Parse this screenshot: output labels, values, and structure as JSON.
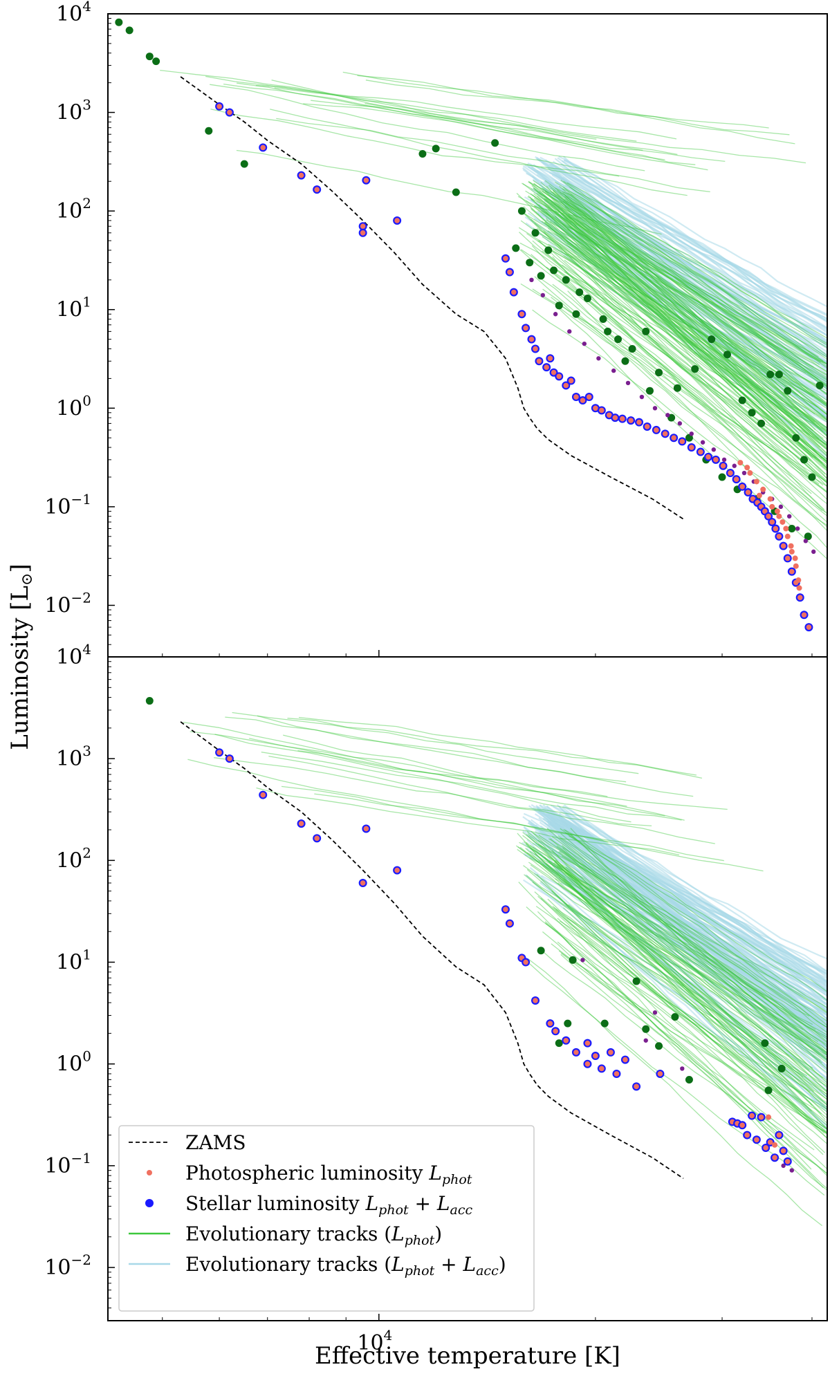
{
  "chart_data": [
    {
      "type": "scatter",
      "panel": "top",
      "xscale": "log",
      "yscale": "log",
      "xlim": [
        4200,
        42000
      ],
      "ylim": [
        0.003,
        10000
      ],
      "x_ticks": [
        {
          "value": 10000,
          "label": "10",
          "exp": "4"
        }
      ],
      "y_ticks": [
        {
          "value": 10000,
          "label": "10",
          "exp": "4"
        },
        {
          "value": 1000,
          "label": "10",
          "exp": "3"
        },
        {
          "value": 100,
          "label": "10",
          "exp": "2"
        },
        {
          "value": 10,
          "label": "10",
          "exp": "1"
        },
        {
          "value": 1,
          "label": "10",
          "exp": "0"
        },
        {
          "value": 0.1,
          "label": "10",
          "exp": "−1"
        },
        {
          "value": 0.01,
          "label": "10",
          "exp": "−2"
        }
      ],
      "zams": {
        "x": [
          5300,
          6000,
          6500,
          7000,
          7800,
          8600,
          9500,
          10500,
          11500,
          12800,
          14000,
          15000,
          15600,
          15900,
          16200,
          16600,
          17200,
          18500,
          21000,
          24000,
          26500
        ],
        "y": [
          2300,
          1200,
          800,
          520,
          300,
          160,
          80,
          38,
          18,
          9,
          6,
          3.2,
          1.6,
          1.0,
          0.8,
          0.62,
          0.48,
          0.33,
          0.2,
          0.12,
          0.075
        ]
      },
      "stellar_points": {
        "x": [
          6000,
          6200,
          6900,
          7800,
          8200,
          9600,
          9500,
          9500,
          10600,
          15000,
          15200,
          15400,
          15800,
          16000,
          16300,
          16500,
          16700,
          17100,
          17300,
          17500,
          17800,
          18200,
          18500,
          18800,
          19200,
          19600,
          20000,
          20400,
          20900,
          21300,
          21800,
          22400,
          23000,
          23600,
          24300,
          25000,
          25700,
          26400,
          27200,
          28000,
          28700,
          29400,
          30100,
          30800,
          31400,
          32000,
          32600,
          33100,
          33600,
          34000,
          34400,
          34800,
          35200,
          35600,
          36000,
          36500,
          37000,
          37500,
          38000,
          38500,
          39000,
          39600
        ],
        "y": [
          1150,
          1000,
          440,
          230,
          165,
          205,
          70,
          60,
          80,
          33,
          24,
          15,
          9,
          6.5,
          5,
          4,
          3,
          2.6,
          3.2,
          2.3,
          2.1,
          1.7,
          1.9,
          1.3,
          1.2,
          1.3,
          1.0,
          0.95,
          0.85,
          0.8,
          0.78,
          0.75,
          0.72,
          0.65,
          0.6,
          0.55,
          0.5,
          0.46,
          0.4,
          0.36,
          0.32,
          0.3,
          0.26,
          0.22,
          0.19,
          0.16,
          0.14,
          0.12,
          0.11,
          0.1,
          0.09,
          0.08,
          0.07,
          0.06,
          0.05,
          0.04,
          0.03,
          0.022,
          0.017,
          0.012,
          0.008,
          0.006
        ]
      },
      "phot_points": {
        "x": [
          31800,
          32800,
          33500,
          34200,
          35000,
          35800,
          36400,
          37000,
          37500,
          38000,
          38400,
          32500,
          33800,
          35200,
          36000,
          36800,
          37400,
          37900,
          38300
        ],
        "y": [
          0.28,
          0.22,
          0.18,
          0.15,
          0.12,
          0.09,
          0.07,
          0.05,
          0.035,
          0.025,
          0.015,
          0.25,
          0.13,
          0.1,
          0.08,
          0.06,
          0.04,
          0.03,
          0.018
        ]
      },
      "green_points": {
        "x": [
          4350,
          4500,
          4800,
          4900,
          5800,
          6500,
          11500,
          12000,
          12800,
          14500,
          15500,
          15800,
          16200,
          16800,
          17200,
          17800,
          18200,
          18800,
          19500,
          20500,
          21500,
          22500,
          23500,
          24500,
          26000,
          27500,
          29000,
          30500,
          32000,
          33000,
          34000,
          35000,
          36000,
          37000,
          38000,
          39000,
          40000,
          41000,
          16500,
          17500,
          19000,
          20800,
          22000,
          23800,
          25500,
          27000,
          28500,
          30000,
          31500,
          33500,
          35500,
          37500,
          39500
        ],
        "y": [
          8200,
          6800,
          3700,
          3300,
          650,
          300,
          380,
          430,
          155,
          490,
          42,
          100,
          30,
          22,
          40,
          11,
          20,
          9,
          13,
          8,
          5,
          4,
          6,
          2.3,
          1.6,
          2.5,
          5,
          3.5,
          1.2,
          0.9,
          0.7,
          2.2,
          2.2,
          1.5,
          0.5,
          0.3,
          0.2,
          1.7,
          60,
          25,
          15,
          6,
          3,
          1.5,
          0.8,
          0.5,
          0.3,
          0.2,
          0.15,
          0.12,
          0.09,
          0.06,
          0.05
        ]
      },
      "purple_points": {
        "x": [
          16300,
          16900,
          17600,
          18400,
          19300,
          20200,
          21200,
          22200,
          23200,
          24200,
          25200,
          26200,
          27200,
          28200,
          29200,
          30200,
          31200,
          32200,
          33200,
          34200,
          35200,
          36200,
          37200,
          38200,
          39200,
          40200
        ],
        "y": [
          20,
          14,
          9,
          6,
          4.5,
          3.2,
          2.4,
          1.8,
          1.3,
          1.0,
          0.85,
          0.7,
          0.55,
          0.45,
          0.38,
          0.3,
          0.26,
          0.22,
          0.18,
          0.14,
          0.12,
          0.1,
          0.08,
          0.06,
          0.045,
          0.035
        ]
      }
    },
    {
      "type": "scatter",
      "panel": "bottom",
      "xscale": "log",
      "yscale": "log",
      "xlim": [
        4200,
        42000
      ],
      "ylim": [
        0.003,
        10000
      ],
      "x_ticks": [
        {
          "value": 10000,
          "label": "10",
          "exp": "4"
        }
      ],
      "y_ticks": [
        {
          "value": 10000,
          "label": "10",
          "exp": "4"
        },
        {
          "value": 1000,
          "label": "10",
          "exp": "3"
        },
        {
          "value": 100,
          "label": "10",
          "exp": "2"
        },
        {
          "value": 10,
          "label": "10",
          "exp": "1"
        },
        {
          "value": 1,
          "label": "10",
          "exp": "0"
        },
        {
          "value": 0.1,
          "label": "10",
          "exp": "−1"
        },
        {
          "value": 0.01,
          "label": "10",
          "exp": "−2"
        }
      ],
      "zams": {
        "x": [
          5300,
          6000,
          6500,
          7000,
          7800,
          8600,
          9500,
          10500,
          11500,
          12800,
          14000,
          15000,
          15600,
          15900,
          16200,
          16600,
          17200,
          18500,
          21000,
          24000,
          26500
        ],
        "y": [
          2300,
          1200,
          800,
          520,
          300,
          160,
          80,
          38,
          18,
          9,
          6,
          3.2,
          1.6,
          1.0,
          0.8,
          0.62,
          0.48,
          0.33,
          0.2,
          0.12,
          0.075
        ]
      },
      "stellar_points": {
        "x": [
          6000,
          6200,
          6900,
          7800,
          8200,
          9600,
          9500,
          10600,
          15000,
          15200,
          15800,
          16000,
          16500,
          17300,
          17600,
          18200,
          18800,
          19500,
          19500,
          20000,
          20400,
          21000,
          21400,
          22000,
          22800,
          24600,
          31000,
          31500,
          32000,
          32500,
          33000,
          33500,
          34000,
          34500,
          35000,
          35500,
          36000,
          36500,
          37000
        ],
        "y": [
          1150,
          1000,
          440,
          230,
          165,
          205,
          60,
          80,
          33,
          24,
          11,
          10,
          4.2,
          2.5,
          2.1,
          1.7,
          1.3,
          1.0,
          1.6,
          1.2,
          0.9,
          1.3,
          0.8,
          1.1,
          0.6,
          0.8,
          0.27,
          0.26,
          0.25,
          0.2,
          0.31,
          0.18,
          0.3,
          0.15,
          0.17,
          0.12,
          0.2,
          0.14,
          0.11
        ]
      },
      "phot_points": {
        "x": [
          34800,
          35500
        ],
        "y": [
          0.3,
          0.16
        ]
      },
      "green_points": {
        "x": [
          4800,
          16800,
          18300,
          18600,
          20600,
          22800,
          23500,
          24500,
          25800,
          27000,
          34400,
          34800,
          36300,
          17800
        ],
        "y": [
          3700,
          13,
          2.5,
          10.5,
          2.5,
          6.5,
          2.2,
          1.5,
          2.9,
          0.7,
          1.6,
          0.55,
          0.9,
          1.6
        ]
      },
      "purple_points": {
        "x": [
          19200,
          23500,
          24200,
          26400,
          36500,
          37500
        ],
        "y": [
          10.5,
          1.7,
          3.2,
          0.9,
          0.1,
          0.09
        ]
      }
    }
  ],
  "axes": {
    "xlabel": "Effective temperature [K]",
    "ylabel_main": "Luminosity [L",
    "ylabel_sun": "⊙",
    "ylabel_close": "]"
  },
  "legend": {
    "zams": "ZAMS",
    "phot_main": "Photospheric luminosity ",
    "phot_sym": "L",
    "phot_sub": "phot",
    "stellar_main": "Stellar luminosity ",
    "stellar_sym1": "L",
    "stellar_sub1": "phot",
    "stellar_plus": " + ",
    "stellar_sym2": "L",
    "stellar_sub2": "acc",
    "tracks_phot_main": "Evolutionary tracks (",
    "tracks_phot_sym": "L",
    "tracks_phot_sub": "phot",
    "tracks_phot_close": ")",
    "tracks_both_main": "Evolutionary tracks (",
    "tracks_both_sym1": "L",
    "tracks_both_sub1": "phot",
    "tracks_both_plus": " + ",
    "tracks_both_sym2": "L",
    "tracks_both_sub2": "acc",
    "tracks_both_close": ")"
  },
  "colors": {
    "green_track": "#3cc83c",
    "blue_track": "#a8d8e8",
    "stellar": "#1a1aff",
    "phot": "#f07060",
    "green_dot": "#0b6e16",
    "purple_dot": "#7a1f8f",
    "zams": "#000000"
  }
}
